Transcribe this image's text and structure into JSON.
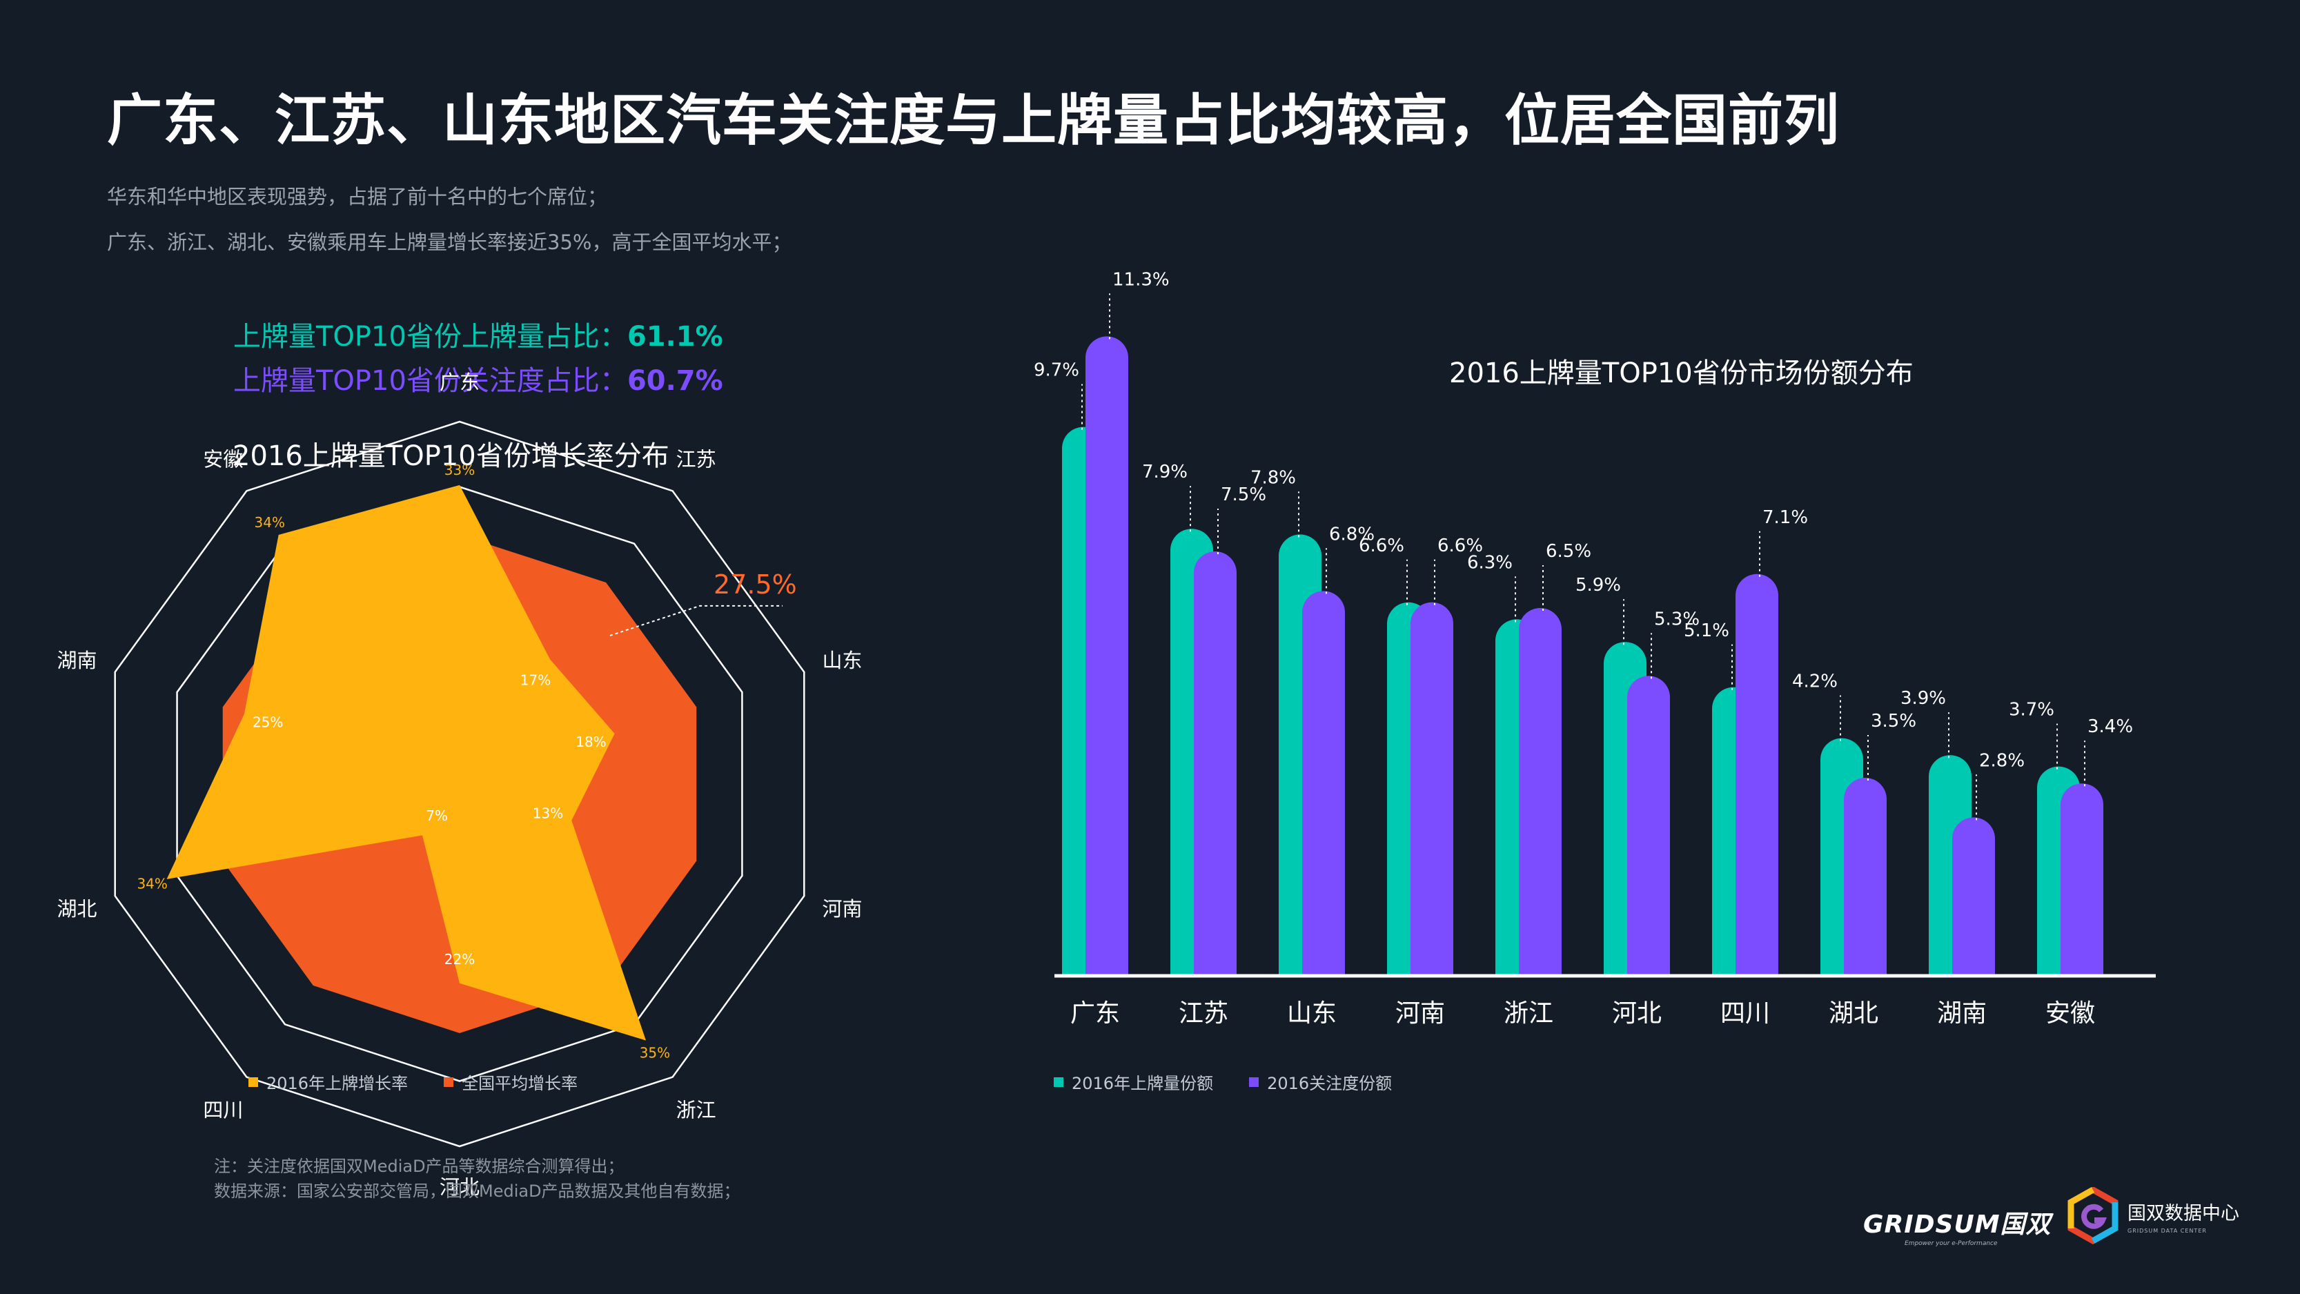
{
  "page": {
    "title": "广东、江苏、山东地区汽车关注度与上牌量占比均较高，位居全国前列",
    "subtitle_lines": [
      "华东和华中地区表现强势，占据了前十名中的七个席位；",
      "广东、浙江、湖北、安徽乘用车上牌量增长率接近35%，高于全国平均水平；"
    ]
  },
  "stats": {
    "reg_share_label": "上牌量TOP10省份上牌量占比：",
    "reg_share_value": "61.1%",
    "att_share_label": "上牌量TOP10省份关注度占比：",
    "att_share_value": "60.7%"
  },
  "colors": {
    "background": "#141c28",
    "teal": "#00c9b1",
    "purple": "#7b4dff",
    "yellow": "#ffb30f",
    "orange": "#f25c23",
    "orange_label": "#ff6a2b"
  },
  "chart_data": [
    {
      "type": "radar",
      "title": "2016上牌量TOP10省份增长率分布",
      "categories": [
        "广东",
        "江苏",
        "山东",
        "河南",
        "浙江",
        "河北",
        "四川",
        "湖北",
        "湖南",
        "安徽"
      ],
      "range": [
        0,
        40
      ],
      "national_average_label": "27.5%",
      "series": [
        {
          "name": "2016年上牌增长率",
          "values": [
            33,
            17,
            18,
            13,
            35,
            22,
            7,
            34,
            25,
            34
          ],
          "labels": [
            "33%",
            "17%",
            "18%",
            "13%",
            "35%",
            "22%",
            "7%",
            "34%",
            "25%",
            "34%"
          ]
        },
        {
          "name": "全国平均增长率",
          "values": [
            27.5,
            27.5,
            27.5,
            27.5,
            27.5,
            27.5,
            27.5,
            27.5,
            27.5,
            27.5
          ]
        }
      ]
    },
    {
      "type": "bar",
      "title": "2016上牌量TOP10省份市场份额分布",
      "categories": [
        "广东",
        "江苏",
        "山东",
        "河南",
        "浙江",
        "河北",
        "四川",
        "湖北",
        "湖南",
        "安徽"
      ],
      "ylim": [
        0,
        12
      ],
      "series": [
        {
          "name": "2016年上牌量份额",
          "values": [
            9.7,
            7.9,
            7.8,
            6.6,
            6.3,
            5.9,
            5.1,
            4.2,
            3.9,
            3.7
          ],
          "labels": [
            "9.7%",
            "7.9%",
            "7.8%",
            "6.6%",
            "6.3%",
            "5.9%",
            "5.1%",
            "4.2%",
            "3.9%",
            "3.7%"
          ]
        },
        {
          "name": "2016关注度份额",
          "values": [
            11.3,
            7.5,
            6.8,
            6.6,
            6.5,
            5.3,
            7.1,
            3.5,
            2.8,
            3.4
          ],
          "labels": [
            "11.3%",
            "7.5%",
            "6.8%",
            "6.6%",
            "6.5%",
            "5.3%",
            "7.1%",
            "3.5%",
            "2.8%",
            "3.4%"
          ]
        }
      ]
    }
  ],
  "notes": [
    "注：关注度依据国双MediaD产品等数据综合测算得出；",
    "数据来源：国家公安部交管局，国双MediaD产品数据及其他自有数据；"
  ],
  "logos": {
    "gridsum": "GRIDSUM国双",
    "gridsum_tagline": "Empower your e-Performance",
    "center": "国双数据中心",
    "center_en": "GRIDSUM DATA CENTER",
    "center_icon": "hexagon-g-logo-icon"
  }
}
